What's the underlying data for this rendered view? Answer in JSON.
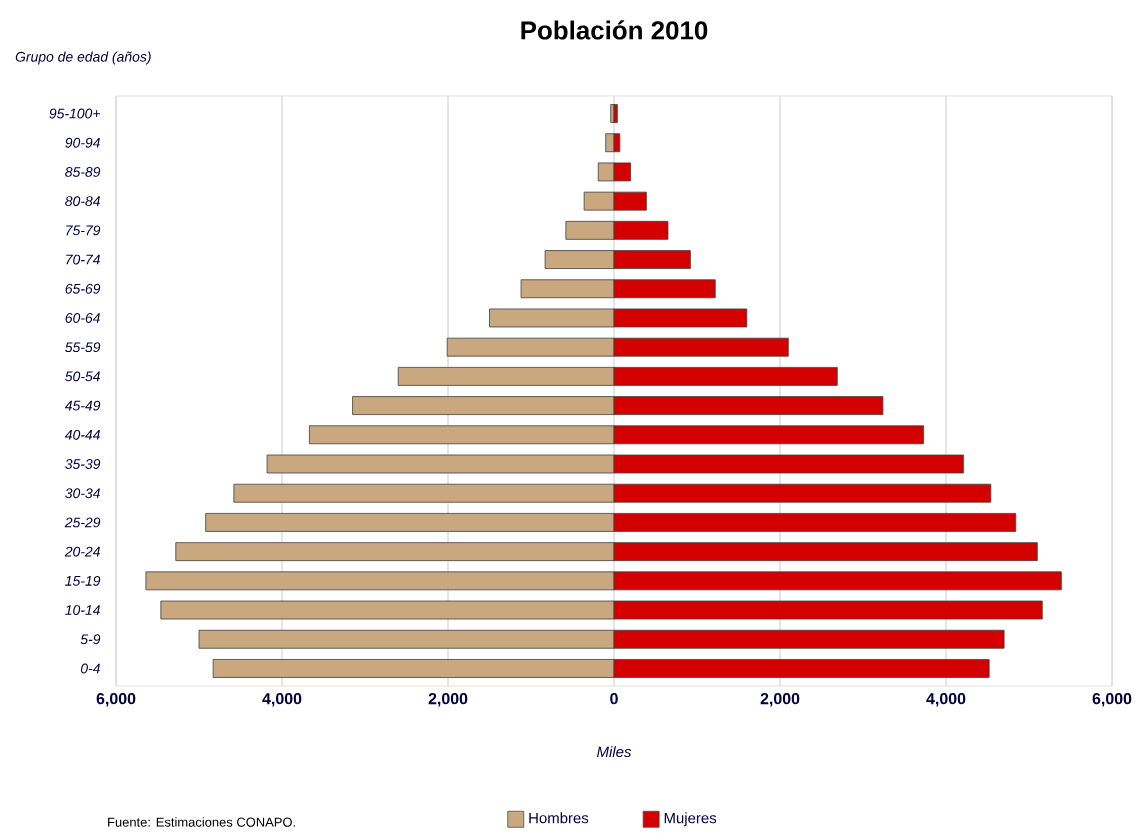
{
  "chart_data": {
    "type": "bar",
    "orientation": "horizontal",
    "title": "Población 2010",
    "xlabel": "Miles",
    "ylabel": "Grupo de edad (años)",
    "categories": [
      "95-100+",
      "90-94",
      "85-89",
      "80-84",
      "75-79",
      "70-74",
      "65-69",
      "60-64",
      "55-59",
      "50-54",
      "45-49",
      "40-44",
      "35-39",
      "30-34",
      "25-29",
      "20-24",
      "15-19",
      "10-14",
      "5-9",
      "0-4"
    ],
    "series": [
      {
        "name": "Hombres",
        "color": "#c9a77f",
        "values": [
          -40,
          -100,
          -190,
          -360,
          -580,
          -830,
          -1120,
          -1500,
          -2010,
          -2600,
          -3150,
          -3670,
          -4180,
          -4580,
          -4920,
          -5280,
          -5640,
          -5460,
          -5000,
          -4830
        ]
      },
      {
        "name": "Mujeres",
        "color": "#d40000",
        "values": [
          40,
          70,
          200,
          390,
          650,
          920,
          1220,
          1600,
          2100,
          2690,
          3240,
          3730,
          4210,
          4540,
          4840,
          5100,
          5390,
          5160,
          4700,
          4520
        ]
      }
    ],
    "xlim": [
      -6000,
      6000
    ],
    "xticks": [
      {
        "value": -6000,
        "label": "6,000"
      },
      {
        "value": -4000,
        "label": "4,000"
      },
      {
        "value": -2000,
        "label": "2,000"
      },
      0,
      {
        "value": 2000,
        "label": "2,000"
      },
      {
        "value": 4000,
        "label": "4,000"
      },
      {
        "value": 6000,
        "label": "6,000"
      }
    ],
    "grid": "x",
    "legend": "bottom",
    "stacked": true,
    "annotations": [
      "Fuente: Estimaciones CONAPO."
    ]
  }
}
